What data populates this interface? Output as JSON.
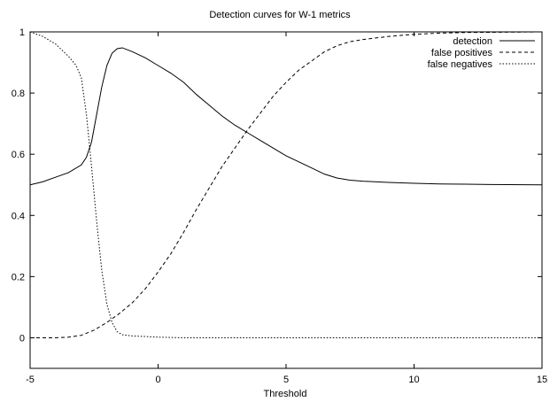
{
  "chart_data": {
    "type": "line",
    "title": "Detection curves for W-1 metrics",
    "xlabel": "Threshold",
    "ylabel": "",
    "xlim": [
      -5,
      15
    ],
    "ylim": [
      -0.1,
      1.0
    ],
    "x_ticks": [
      -5,
      0,
      5,
      10,
      15
    ],
    "y_ticks": [
      0,
      0.2,
      0.4,
      0.6,
      0.8,
      1
    ],
    "grid": false,
    "legend_position": "top-right",
    "series": [
      {
        "name": "detection",
        "dash": "solid",
        "points": [
          [
            -5,
            0.5
          ],
          [
            -4.5,
            0.51
          ],
          [
            -4,
            0.525
          ],
          [
            -3.5,
            0.54
          ],
          [
            -3,
            0.565
          ],
          [
            -2.8,
            0.59
          ],
          [
            -2.6,
            0.64
          ],
          [
            -2.4,
            0.73
          ],
          [
            -2.2,
            0.82
          ],
          [
            -2,
            0.89
          ],
          [
            -1.8,
            0.93
          ],
          [
            -1.6,
            0.945
          ],
          [
            -1.4,
            0.948
          ],
          [
            -1,
            0.935
          ],
          [
            -0.5,
            0.915
          ],
          [
            0,
            0.89
          ],
          [
            0.5,
            0.865
          ],
          [
            1,
            0.835
          ],
          [
            1.5,
            0.795
          ],
          [
            2,
            0.76
          ],
          [
            2.5,
            0.725
          ],
          [
            3,
            0.695
          ],
          [
            3.5,
            0.67
          ],
          [
            4,
            0.645
          ],
          [
            4.5,
            0.62
          ],
          [
            5,
            0.595
          ],
          [
            5.5,
            0.575
          ],
          [
            6,
            0.555
          ],
          [
            6.5,
            0.535
          ],
          [
            7,
            0.522
          ],
          [
            7.5,
            0.515
          ],
          [
            8,
            0.512
          ],
          [
            9,
            0.508
          ],
          [
            10,
            0.505
          ],
          [
            11,
            0.503
          ],
          [
            12,
            0.502
          ],
          [
            13,
            0.501
          ],
          [
            15,
            0.5
          ]
        ]
      },
      {
        "name": "false positives",
        "dash": "dashed",
        "points": [
          [
            -5,
            0.0
          ],
          [
            -4,
            0.0
          ],
          [
            -3.5,
            0.002
          ],
          [
            -3,
            0.008
          ],
          [
            -2.5,
            0.025
          ],
          [
            -2,
            0.05
          ],
          [
            -1.5,
            0.08
          ],
          [
            -1,
            0.115
          ],
          [
            -0.5,
            0.16
          ],
          [
            0,
            0.215
          ],
          [
            0.5,
            0.275
          ],
          [
            1,
            0.345
          ],
          [
            1.5,
            0.42
          ],
          [
            2,
            0.49
          ],
          [
            2.5,
            0.56
          ],
          [
            3,
            0.62
          ],
          [
            3.5,
            0.68
          ],
          [
            4,
            0.735
          ],
          [
            4.5,
            0.79
          ],
          [
            5,
            0.835
          ],
          [
            5.5,
            0.875
          ],
          [
            6,
            0.905
          ],
          [
            6.5,
            0.935
          ],
          [
            7,
            0.955
          ],
          [
            7.5,
            0.968
          ],
          [
            8,
            0.975
          ],
          [
            9,
            0.985
          ],
          [
            10,
            0.992
          ],
          [
            11,
            0.996
          ],
          [
            12,
            0.998
          ],
          [
            15,
            1.0
          ]
        ]
      },
      {
        "name": "false negatives",
        "dash": "dotted",
        "points": [
          [
            -5,
            1.0
          ],
          [
            -4.5,
            0.985
          ],
          [
            -4,
            0.96
          ],
          [
            -3.5,
            0.92
          ],
          [
            -3.2,
            0.89
          ],
          [
            -3,
            0.85
          ],
          [
            -2.8,
            0.73
          ],
          [
            -2.6,
            0.56
          ],
          [
            -2.4,
            0.38
          ],
          [
            -2.2,
            0.22
          ],
          [
            -2,
            0.11
          ],
          [
            -1.8,
            0.05
          ],
          [
            -1.6,
            0.02
          ],
          [
            -1.4,
            0.01
          ],
          [
            -1,
            0.006
          ],
          [
            0,
            0.002
          ],
          [
            1,
            0.0
          ],
          [
            5,
            0.0
          ],
          [
            10,
            0.0
          ],
          [
            15,
            0.0
          ]
        ]
      }
    ]
  }
}
